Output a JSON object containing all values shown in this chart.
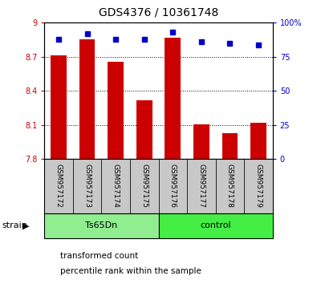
{
  "title": "GDS4376 / 10361748",
  "samples": [
    "GSM957172",
    "GSM957173",
    "GSM957174",
    "GSM957175",
    "GSM957176",
    "GSM957177",
    "GSM957178",
    "GSM957179"
  ],
  "transformed_counts": [
    8.71,
    8.855,
    8.655,
    8.32,
    8.865,
    8.102,
    8.03,
    8.12
  ],
  "percentile_ranks": [
    88,
    92,
    88,
    88,
    93,
    86,
    85,
    84
  ],
  "ylim_left": [
    7.8,
    9.0
  ],
  "yticks_left": [
    7.8,
    8.1,
    8.4,
    8.7,
    9.0
  ],
  "ytick_labels_left": [
    "7.8",
    "8.1",
    "8.4",
    "8.7",
    "9"
  ],
  "ylim_right": [
    0,
    100
  ],
  "yticks_right": [
    0,
    25,
    50,
    75,
    100
  ],
  "ytick_labels_right": [
    "0",
    "25",
    "50",
    "75",
    "100%"
  ],
  "bar_color": "#cc0000",
  "dot_color": "#0000cc",
  "bar_bottom": 7.8,
  "groups": [
    {
      "label": "Ts65Dn",
      "indices": [
        0,
        1,
        2,
        3
      ],
      "color": "#90ee90"
    },
    {
      "label": "control",
      "indices": [
        4,
        5,
        6,
        7
      ],
      "color": "#44ee44"
    }
  ],
  "legend_items": [
    {
      "label": "transformed count",
      "color": "#cc0000"
    },
    {
      "label": "percentile rank within the sample",
      "color": "#0000cc"
    }
  ],
  "tick_area_bg": "#c8c8c8"
}
